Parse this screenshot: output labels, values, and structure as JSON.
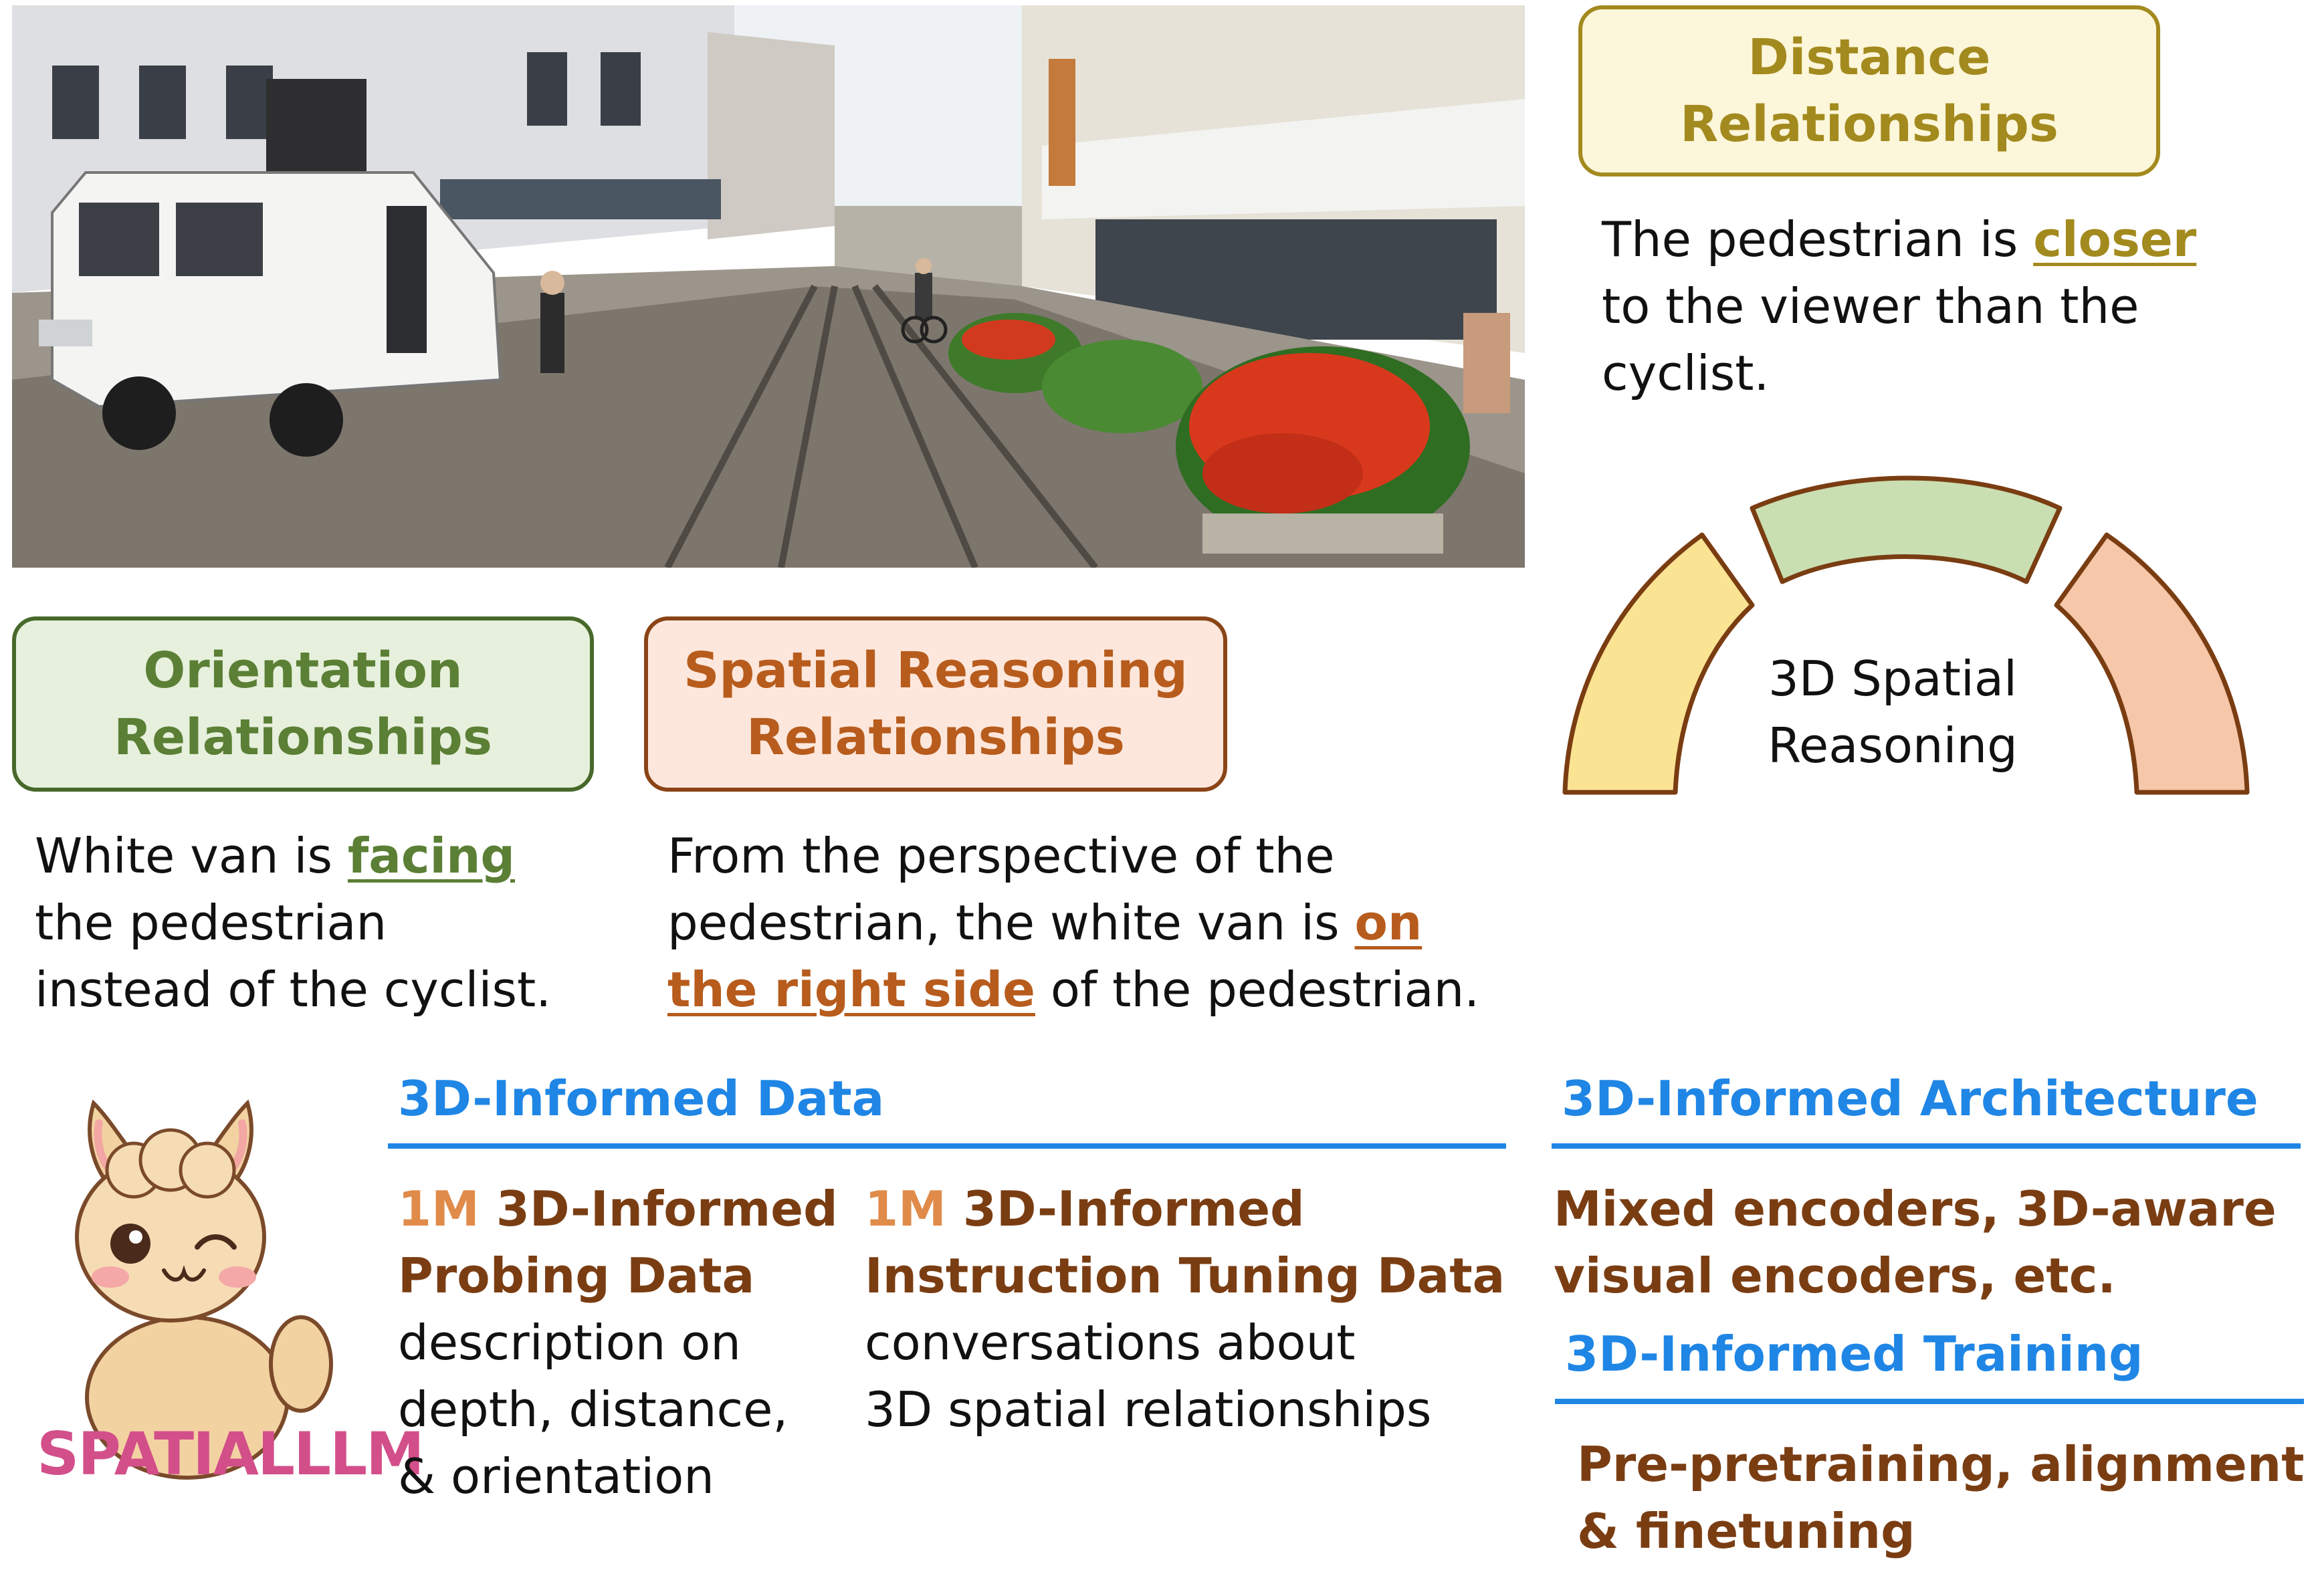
{
  "distance": {
    "title_line1": "Distance",
    "title_line2": "Relationships",
    "desc_pre": "The pedestrian is ",
    "keyword": "closer",
    "desc_post_line2": "to the viewer than the",
    "desc_post_line3": "cyclist."
  },
  "orientation": {
    "title_line1": "Orientation",
    "title_line2": "Relationships",
    "desc_pre": "White van is ",
    "keyword": "facing",
    "desc_line2": "the pedestrian",
    "desc_line3": "instead of the cyclist."
  },
  "spatial_reasoning": {
    "title_line1": "Spatial Reasoning",
    "title_line2": "Relationships",
    "desc_line1": "From the perspective of the",
    "desc_line2_pre": "pedestrian, the white van is ",
    "keyword_part1": "on",
    "keyword_part2": "the right side",
    "desc_line3_post": " of the pedestrian."
  },
  "arch_diagram": {
    "label_line1": "3D Spatial",
    "label_line2": "Reasoning",
    "segment_colors": [
      "#fbe394",
      "#c9dfb2",
      "#f6c7a9"
    ]
  },
  "logo": {
    "text": "SPATIALLLM"
  },
  "data_section": {
    "title": "3D-Informed Data",
    "probing": {
      "amount": "1M",
      "title_line1_rest": " 3D-Informed",
      "title_line2": "Probing Data",
      "desc_line1": "description on",
      "desc_line2": "depth, distance,",
      "desc_line3": "& orientation"
    },
    "instruction": {
      "amount": "1M",
      "title_line1_rest": " 3D-Informed",
      "title_line2": "Instruction Tuning Data",
      "desc_line1": "conversations about",
      "desc_line2": "3D spatial relationships"
    }
  },
  "architecture_section": {
    "title": "3D-Informed Architecture",
    "desc_line1": "Mixed encoders, 3D-aware",
    "desc_line2": "visual encoders, etc."
  },
  "training_section": {
    "title": "3D-Informed Training",
    "desc_line1": "Pre-pretraining, alignment",
    "desc_line2": "& finetuning"
  },
  "colors": {
    "blue": "#1f86e5",
    "brown": "#7a3d12",
    "gold": "#a38a1e",
    "green": "#5b7f35",
    "orange": "#b75c1d"
  }
}
